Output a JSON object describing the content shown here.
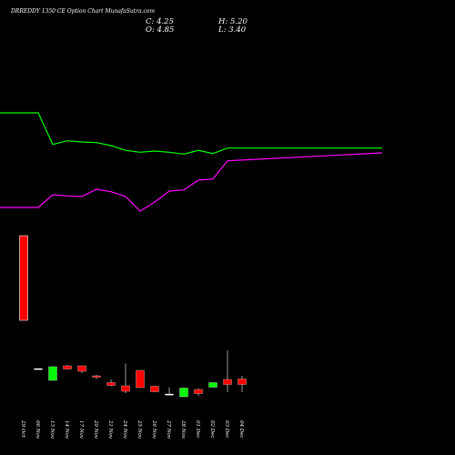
{
  "header": {
    "title": "DRREDDY 1350 CE Option Chart MunafaSutra.com",
    "close_label": "C: 4.25",
    "high_label": "H: 5.20",
    "open_label": "O: 4.85",
    "low_label": "L: 3.40"
  },
  "chart_data": {
    "type": "candlestick",
    "title": "DRREDDY 1350 CE Option Chart MunafaSutra.com",
    "grid": false,
    "background": "#000000",
    "categories": [
      "29 Oct",
      "06 Nov",
      "13 Nov",
      "14 Nov",
      "17 Nov",
      "20 Nov",
      "21 Nov",
      "24 Nov",
      "25 Nov",
      "26 Nov",
      "27 Nov",
      "28 Nov",
      "01 Dec",
      "02 Dec",
      "03 Dec",
      "04 Dec"
    ],
    "ylim": [
      0,
      20
    ],
    "candles": [
      {
        "open": 9.1,
        "high": 9.1,
        "low": 9.1,
        "close": 9.1
      },
      {
        "open": 6.0,
        "high": 6.05,
        "low": 5.95,
        "close": 5.95
      },
      {
        "open": 4.7,
        "high": 6.3,
        "low": 4.7,
        "close": 6.2
      },
      {
        "open": 6.3,
        "high": 6.4,
        "low": 5.9,
        "close": 5.95
      },
      {
        "open": 6.3,
        "high": 6.3,
        "low": 5.5,
        "close": 5.7
      },
      {
        "open": 5.2,
        "high": 5.3,
        "low": 4.85,
        "close": 5.05
      },
      {
        "open": 4.45,
        "high": 4.8,
        "low": 4.05,
        "close": 4.15
      },
      {
        "open": 4.1,
        "high": 6.55,
        "low": 3.3,
        "close": 3.5
      },
      {
        "open": 5.8,
        "high": 5.8,
        "low": 3.9,
        "close": 3.9
      },
      {
        "open": 4.05,
        "high": 4.1,
        "low": 3.4,
        "close": 3.45
      },
      {
        "open": 3.2,
        "high": 3.95,
        "low": 3.05,
        "close": 3.15
      },
      {
        "open": 2.9,
        "high": 3.9,
        "low": 2.85,
        "close": 3.85
      },
      {
        "open": 3.7,
        "high": 3.8,
        "low": 3.0,
        "close": 3.25
      },
      {
        "open": 3.95,
        "high": 4.5,
        "low": 3.95,
        "close": 4.45
      },
      {
        "open": 4.8,
        "high": 8.0,
        "low": 3.4,
        "close": 4.25
      },
      {
        "open": 4.85,
        "high": 5.2,
        "low": 3.4,
        "close": 4.25
      }
    ],
    "series": [
      {
        "color": "#00ff00",
        "values": [
          11.2,
          11.2,
          8.6,
          8.9,
          8.8,
          8.75,
          8.5,
          8.1,
          7.95,
          8.05,
          7.95,
          7.8,
          8.1,
          7.85,
          8.3,
          8.3
        ]
      },
      {
        "color": "#ff00ff",
        "values": [
          3.4,
          3.4,
          4.45,
          4.35,
          4.3,
          4.9,
          4.7,
          4.3,
          3.1,
          3.85,
          4.75,
          4.85,
          5.65,
          5.75,
          7.25,
          7.9
        ]
      }
    ],
    "up_color": "#00ff00",
    "down_color": "#ff0000",
    "volume_unit": 1,
    "volume": [
      9.3,
      0,
      0,
      0,
      0,
      0,
      0,
      0,
      0,
      0,
      0,
      0,
      0,
      0,
      0,
      0
    ]
  }
}
